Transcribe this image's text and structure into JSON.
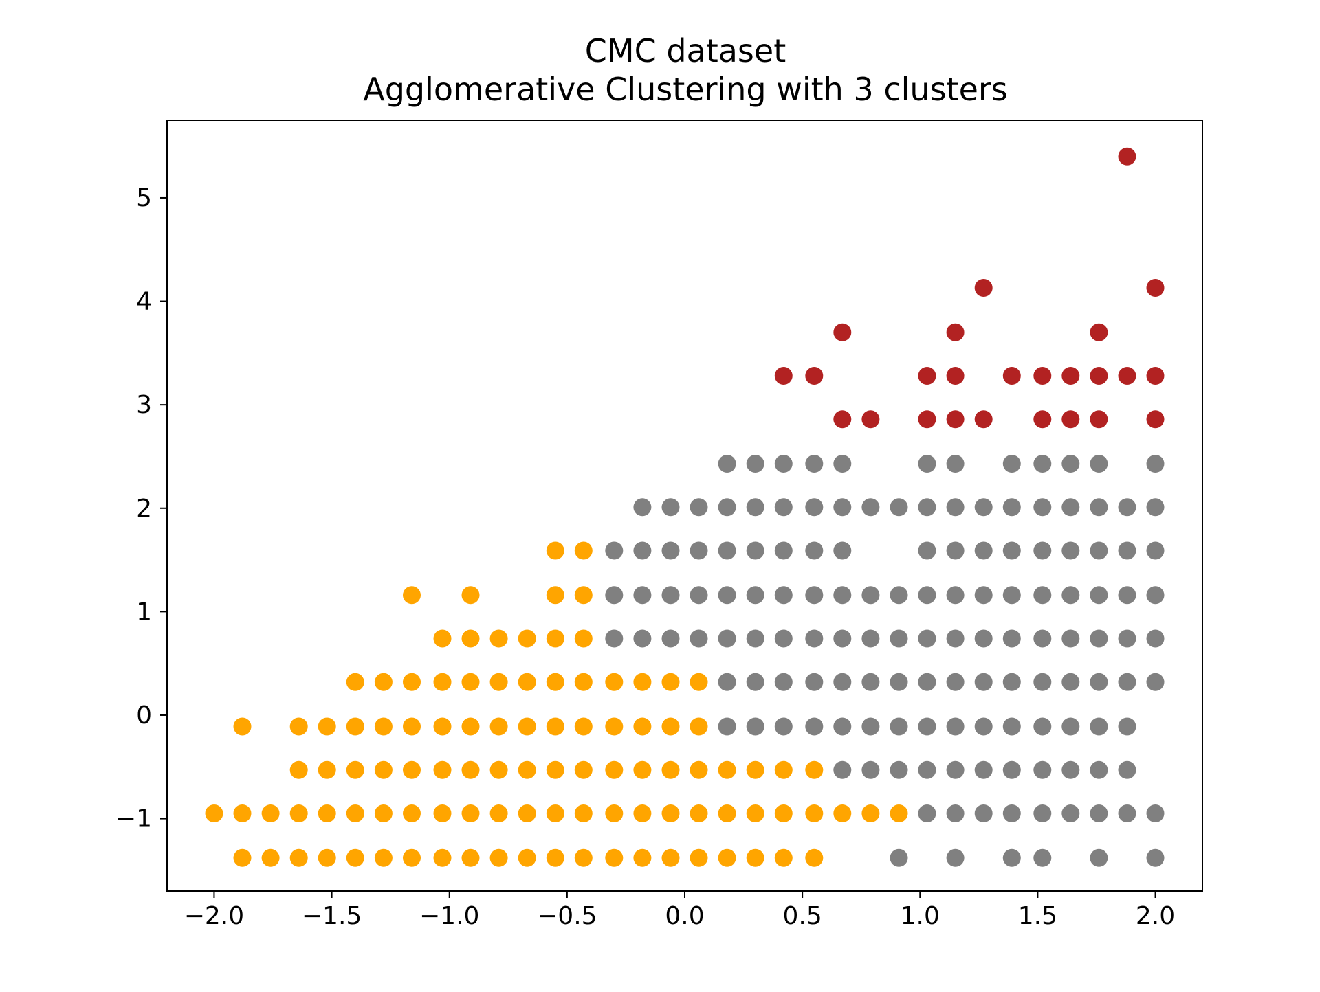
{
  "chart_data": {
    "type": "scatter",
    "title": "CMC dataset",
    "subtitle": "Agglomerative Clustering with 3 clusters",
    "xlabel": "",
    "ylabel": "",
    "xlim": [
      -2.2,
      2.2
    ],
    "ylim": [
      -1.7,
      5.75
    ],
    "xticks": [
      -2.0,
      -1.5,
      -1.0,
      -0.5,
      0.0,
      0.5,
      1.0,
      1.5,
      2.0
    ],
    "xtick_labels": [
      "−2.0",
      "−1.5",
      "−1.0",
      "−0.5",
      "0.0",
      "0.5",
      "1.0",
      "1.5",
      "2.0"
    ],
    "yticks": [
      -1,
      0,
      1,
      2,
      3,
      4,
      5
    ],
    "ytick_labels": [
      "−1",
      "0",
      "1",
      "2",
      "3",
      "4",
      "5"
    ],
    "grid": false,
    "legend": "none",
    "series": [
      {
        "color": "#ffa500",
        "points": [
          [
            -1.88,
            -1.38
          ],
          [
            -1.76,
            -1.38
          ],
          [
            -1.64,
            -1.38
          ],
          [
            -1.52,
            -1.38
          ],
          [
            -1.4,
            -1.38
          ],
          [
            -1.28,
            -1.38
          ],
          [
            -1.16,
            -1.38
          ],
          [
            -1.03,
            -1.38
          ],
          [
            -0.91,
            -1.38
          ],
          [
            -0.79,
            -1.38
          ],
          [
            -0.67,
            -1.38
          ],
          [
            -0.55,
            -1.38
          ],
          [
            -0.43,
            -1.38
          ],
          [
            -0.3,
            -1.38
          ],
          [
            -0.18,
            -1.38
          ],
          [
            -0.06,
            -1.38
          ],
          [
            0.06,
            -1.38
          ],
          [
            0.18,
            -1.38
          ],
          [
            0.3,
            -1.38
          ],
          [
            0.42,
            -1.38
          ],
          [
            0.55,
            -1.38
          ],
          [
            -2.0,
            -0.95
          ],
          [
            -1.88,
            -0.95
          ],
          [
            -1.76,
            -0.95
          ],
          [
            -1.64,
            -0.95
          ],
          [
            -1.52,
            -0.95
          ],
          [
            -1.4,
            -0.95
          ],
          [
            -1.28,
            -0.95
          ],
          [
            -1.16,
            -0.95
          ],
          [
            -1.03,
            -0.95
          ],
          [
            -0.91,
            -0.95
          ],
          [
            -0.79,
            -0.95
          ],
          [
            -0.67,
            -0.95
          ],
          [
            -0.55,
            -0.95
          ],
          [
            -0.43,
            -0.95
          ],
          [
            -0.3,
            -0.95
          ],
          [
            -0.18,
            -0.95
          ],
          [
            -0.06,
            -0.95
          ],
          [
            0.06,
            -0.95
          ],
          [
            0.18,
            -0.95
          ],
          [
            0.3,
            -0.95
          ],
          [
            0.42,
            -0.95
          ],
          [
            0.55,
            -0.95
          ],
          [
            0.67,
            -0.95
          ],
          [
            0.79,
            -0.95
          ],
          [
            0.91,
            -0.95
          ],
          [
            -1.64,
            -0.53
          ],
          [
            -1.52,
            -0.53
          ],
          [
            -1.4,
            -0.53
          ],
          [
            -1.28,
            -0.53
          ],
          [
            -1.16,
            -0.53
          ],
          [
            -1.03,
            -0.53
          ],
          [
            -0.91,
            -0.53
          ],
          [
            -0.79,
            -0.53
          ],
          [
            -0.67,
            -0.53
          ],
          [
            -0.55,
            -0.53
          ],
          [
            -0.43,
            -0.53
          ],
          [
            -0.3,
            -0.53
          ],
          [
            -0.18,
            -0.53
          ],
          [
            -0.06,
            -0.53
          ],
          [
            0.06,
            -0.53
          ],
          [
            0.18,
            -0.53
          ],
          [
            0.3,
            -0.53
          ],
          [
            0.42,
            -0.53
          ],
          [
            0.55,
            -0.53
          ],
          [
            -1.88,
            -0.11
          ],
          [
            -1.64,
            -0.11
          ],
          [
            -1.52,
            -0.11
          ],
          [
            -1.4,
            -0.11
          ],
          [
            -1.28,
            -0.11
          ],
          [
            -1.16,
            -0.11
          ],
          [
            -1.03,
            -0.11
          ],
          [
            -0.91,
            -0.11
          ],
          [
            -0.79,
            -0.11
          ],
          [
            -0.67,
            -0.11
          ],
          [
            -0.55,
            -0.11
          ],
          [
            -0.43,
            -0.11
          ],
          [
            -0.3,
            -0.11
          ],
          [
            -0.18,
            -0.11
          ],
          [
            -0.06,
            -0.11
          ],
          [
            0.06,
            -0.11
          ],
          [
            -1.4,
            0.32
          ],
          [
            -1.28,
            0.32
          ],
          [
            -1.16,
            0.32
          ],
          [
            -1.03,
            0.32
          ],
          [
            -0.91,
            0.32
          ],
          [
            -0.79,
            0.32
          ],
          [
            -0.67,
            0.32
          ],
          [
            -0.55,
            0.32
          ],
          [
            -0.43,
            0.32
          ],
          [
            -0.3,
            0.32
          ],
          [
            -0.18,
            0.32
          ],
          [
            -0.06,
            0.32
          ],
          [
            0.06,
            0.32
          ],
          [
            -1.03,
            0.74
          ],
          [
            -0.91,
            0.74
          ],
          [
            -0.79,
            0.74
          ],
          [
            -0.67,
            0.74
          ],
          [
            -0.55,
            0.74
          ],
          [
            -0.43,
            0.74
          ],
          [
            -1.16,
            1.16
          ],
          [
            -0.91,
            1.16
          ],
          [
            -0.55,
            1.16
          ],
          [
            -0.43,
            1.16
          ],
          [
            -0.55,
            1.59
          ],
          [
            -0.43,
            1.59
          ]
        ]
      },
      {
        "color": "#808080",
        "points": [
          [
            0.91,
            -1.38
          ],
          [
            1.15,
            -1.38
          ],
          [
            1.39,
            -1.38
          ],
          [
            1.52,
            -1.38
          ],
          [
            1.76,
            -1.38
          ],
          [
            2.0,
            -1.38
          ],
          [
            1.03,
            -0.95
          ],
          [
            1.15,
            -0.95
          ],
          [
            1.27,
            -0.95
          ],
          [
            1.39,
            -0.95
          ],
          [
            1.52,
            -0.95
          ],
          [
            1.64,
            -0.95
          ],
          [
            1.76,
            -0.95
          ],
          [
            1.88,
            -0.95
          ],
          [
            2.0,
            -0.95
          ],
          [
            0.67,
            -0.53
          ],
          [
            0.79,
            -0.53
          ],
          [
            0.91,
            -0.53
          ],
          [
            1.03,
            -0.53
          ],
          [
            1.15,
            -0.53
          ],
          [
            1.27,
            -0.53
          ],
          [
            1.39,
            -0.53
          ],
          [
            1.52,
            -0.53
          ],
          [
            1.64,
            -0.53
          ],
          [
            1.76,
            -0.53
          ],
          [
            1.88,
            -0.53
          ],
          [
            0.18,
            -0.11
          ],
          [
            0.3,
            -0.11
          ],
          [
            0.42,
            -0.11
          ],
          [
            0.55,
            -0.11
          ],
          [
            0.67,
            -0.11
          ],
          [
            0.79,
            -0.11
          ],
          [
            0.91,
            -0.11
          ],
          [
            1.03,
            -0.11
          ],
          [
            1.15,
            -0.11
          ],
          [
            1.27,
            -0.11
          ],
          [
            1.39,
            -0.11
          ],
          [
            1.52,
            -0.11
          ],
          [
            1.64,
            -0.11
          ],
          [
            1.76,
            -0.11
          ],
          [
            1.88,
            -0.11
          ],
          [
            0.18,
            0.32
          ],
          [
            0.3,
            0.32
          ],
          [
            0.42,
            0.32
          ],
          [
            0.55,
            0.32
          ],
          [
            0.67,
            0.32
          ],
          [
            0.79,
            0.32
          ],
          [
            0.91,
            0.32
          ],
          [
            1.03,
            0.32
          ],
          [
            1.15,
            0.32
          ],
          [
            1.27,
            0.32
          ],
          [
            1.39,
            0.32
          ],
          [
            1.52,
            0.32
          ],
          [
            1.64,
            0.32
          ],
          [
            1.76,
            0.32
          ],
          [
            1.88,
            0.32
          ],
          [
            2.0,
            0.32
          ],
          [
            -0.3,
            0.74
          ],
          [
            -0.18,
            0.74
          ],
          [
            -0.06,
            0.74
          ],
          [
            0.06,
            0.74
          ],
          [
            0.18,
            0.74
          ],
          [
            0.3,
            0.74
          ],
          [
            0.42,
            0.74
          ],
          [
            0.55,
            0.74
          ],
          [
            0.67,
            0.74
          ],
          [
            0.79,
            0.74
          ],
          [
            0.91,
            0.74
          ],
          [
            1.03,
            0.74
          ],
          [
            1.15,
            0.74
          ],
          [
            1.27,
            0.74
          ],
          [
            1.39,
            0.74
          ],
          [
            1.52,
            0.74
          ],
          [
            1.64,
            0.74
          ],
          [
            1.76,
            0.74
          ],
          [
            1.88,
            0.74
          ],
          [
            2.0,
            0.74
          ],
          [
            -0.3,
            1.16
          ],
          [
            -0.18,
            1.16
          ],
          [
            -0.06,
            1.16
          ],
          [
            0.06,
            1.16
          ],
          [
            0.18,
            1.16
          ],
          [
            0.3,
            1.16
          ],
          [
            0.42,
            1.16
          ],
          [
            0.55,
            1.16
          ],
          [
            0.67,
            1.16
          ],
          [
            0.79,
            1.16
          ],
          [
            0.91,
            1.16
          ],
          [
            1.03,
            1.16
          ],
          [
            1.15,
            1.16
          ],
          [
            1.27,
            1.16
          ],
          [
            1.39,
            1.16
          ],
          [
            1.52,
            1.16
          ],
          [
            1.64,
            1.16
          ],
          [
            1.76,
            1.16
          ],
          [
            1.88,
            1.16
          ],
          [
            2.0,
            1.16
          ],
          [
            -0.3,
            1.59
          ],
          [
            -0.18,
            1.59
          ],
          [
            -0.06,
            1.59
          ],
          [
            0.06,
            1.59
          ],
          [
            0.18,
            1.59
          ],
          [
            0.3,
            1.59
          ],
          [
            0.42,
            1.59
          ],
          [
            0.55,
            1.59
          ],
          [
            0.67,
            1.59
          ],
          [
            1.03,
            1.59
          ],
          [
            1.15,
            1.59
          ],
          [
            1.27,
            1.59
          ],
          [
            1.39,
            1.59
          ],
          [
            1.52,
            1.59
          ],
          [
            1.64,
            1.59
          ],
          [
            1.76,
            1.59
          ],
          [
            1.88,
            1.59
          ],
          [
            2.0,
            1.59
          ],
          [
            -0.18,
            2.01
          ],
          [
            -0.06,
            2.01
          ],
          [
            0.06,
            2.01
          ],
          [
            0.18,
            2.01
          ],
          [
            0.3,
            2.01
          ],
          [
            0.42,
            2.01
          ],
          [
            0.55,
            2.01
          ],
          [
            0.67,
            2.01
          ],
          [
            0.79,
            2.01
          ],
          [
            0.91,
            2.01
          ],
          [
            1.03,
            2.01
          ],
          [
            1.15,
            2.01
          ],
          [
            1.27,
            2.01
          ],
          [
            1.39,
            2.01
          ],
          [
            1.52,
            2.01
          ],
          [
            1.64,
            2.01
          ],
          [
            1.76,
            2.01
          ],
          [
            1.88,
            2.01
          ],
          [
            2.0,
            2.01
          ],
          [
            0.18,
            2.43
          ],
          [
            0.3,
            2.43
          ],
          [
            0.42,
            2.43
          ],
          [
            0.55,
            2.43
          ],
          [
            0.67,
            2.43
          ],
          [
            1.03,
            2.43
          ],
          [
            1.15,
            2.43
          ],
          [
            1.39,
            2.43
          ],
          [
            1.52,
            2.43
          ],
          [
            1.64,
            2.43
          ],
          [
            1.76,
            2.43
          ],
          [
            2.0,
            2.43
          ]
        ]
      },
      {
        "color": "#b22222",
        "points": [
          [
            0.67,
            2.86
          ],
          [
            0.79,
            2.86
          ],
          [
            1.03,
            2.86
          ],
          [
            1.15,
            2.86
          ],
          [
            1.27,
            2.86
          ],
          [
            1.52,
            2.86
          ],
          [
            1.64,
            2.86
          ],
          [
            1.76,
            2.86
          ],
          [
            2.0,
            2.86
          ],
          [
            0.42,
            3.28
          ],
          [
            0.55,
            3.28
          ],
          [
            1.03,
            3.28
          ],
          [
            1.15,
            3.28
          ],
          [
            1.39,
            3.28
          ],
          [
            1.52,
            3.28
          ],
          [
            1.64,
            3.28
          ],
          [
            1.76,
            3.28
          ],
          [
            1.88,
            3.28
          ],
          [
            2.0,
            3.28
          ],
          [
            0.67,
            3.7
          ],
          [
            1.15,
            3.7
          ],
          [
            1.76,
            3.7
          ],
          [
            1.27,
            4.13
          ],
          [
            2.0,
            4.13
          ],
          [
            1.88,
            5.4
          ]
        ]
      }
    ]
  }
}
